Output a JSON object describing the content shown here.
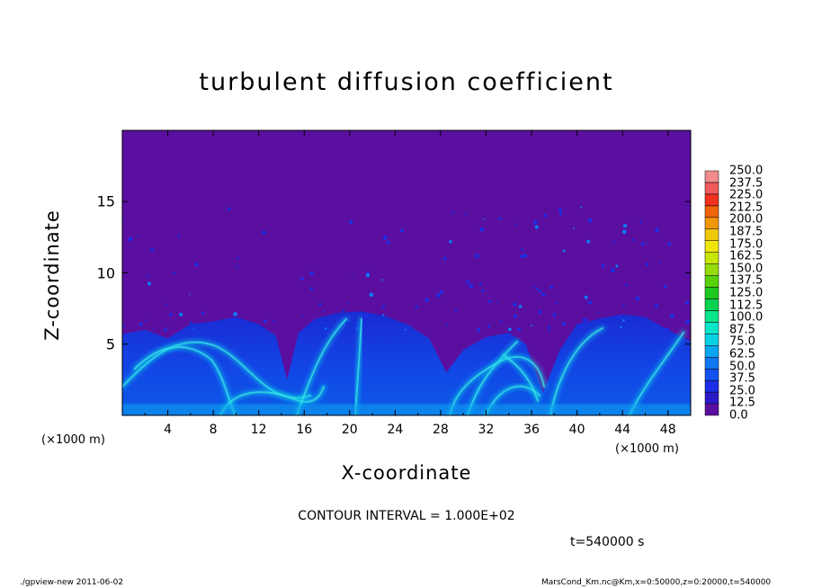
{
  "chart_data": {
    "type": "heatmap",
    "title": "turbulent diffusion coefficient",
    "xlabel": "X-coordinate",
    "ylabel": "Z-coordinate",
    "x_unit": "(×1000 m)",
    "xlim": [
      0,
      50
    ],
    "ylim": [
      0,
      20
    ],
    "x_ticks": [
      "4",
      "8",
      "12",
      "16",
      "20",
      "24",
      "28",
      "32",
      "36",
      "40",
      "44",
      "48"
    ],
    "y_ticks": [
      "5",
      "10",
      "15"
    ],
    "colorbar_levels": [
      "0.0",
      "12.5",
      "25.0",
      "37.5",
      "50.0",
      "62.5",
      "75.0",
      "87.5",
      "100.0",
      "112.5",
      "125.0",
      "137.5",
      "150.0",
      "162.5",
      "175.0",
      "187.5",
      "200.0",
      "212.5",
      "225.0",
      "237.5",
      "250.0"
    ],
    "colorbar_colors": [
      "#5a0fa0",
      "#2a1ac8",
      "#1c2ee6",
      "#1452f0",
      "#0f78f0",
      "#0aa6f0",
      "#0ad2e6",
      "#0ae6c8",
      "#0ae68c",
      "#0ad250",
      "#1ec81e",
      "#5ad20a",
      "#96dc0a",
      "#c8e60a",
      "#f0e60a",
      "#f0c80a",
      "#f0960a",
      "#f0640a",
      "#f0321e",
      "#f05a5a",
      "#f08c8c"
    ],
    "boundary_layer_top": [
      [
        0,
        5.7
      ],
      [
        2,
        6.0
      ],
      [
        4,
        5.4
      ],
      [
        6,
        6.4
      ],
      [
        8,
        6.6
      ],
      [
        10,
        6.9
      ],
      [
        12,
        6.4
      ],
      [
        13.5,
        5.6
      ],
      [
        14.5,
        2.5
      ],
      [
        15.5,
        5.8
      ],
      [
        17,
        6.8
      ],
      [
        19,
        7.2
      ],
      [
        21,
        7.3
      ],
      [
        23,
        7.0
      ],
      [
        25,
        6.4
      ],
      [
        27,
        5.4
      ],
      [
        28.5,
        3.0
      ],
      [
        30,
        4.6
      ],
      [
        32,
        5.5
      ],
      [
        34,
        5.8
      ],
      [
        35.5,
        5.0
      ],
      [
        37,
        1.6
      ],
      [
        38.5,
        4.6
      ],
      [
        40,
        6.4
      ],
      [
        42,
        6.8
      ],
      [
        44,
        7.1
      ],
      [
        46,
        6.9
      ],
      [
        48,
        6.0
      ],
      [
        50,
        5.2
      ]
    ],
    "contour_interval": "CONTOUR INTERVAL = 1.000E+02",
    "time": "t=540000 s"
  },
  "footer": {
    "left": "./gpview-new  2011-06-02",
    "right": "MarsCond_Km.nc@Km,x=0:50000,z=0:20000,t=540000"
  }
}
